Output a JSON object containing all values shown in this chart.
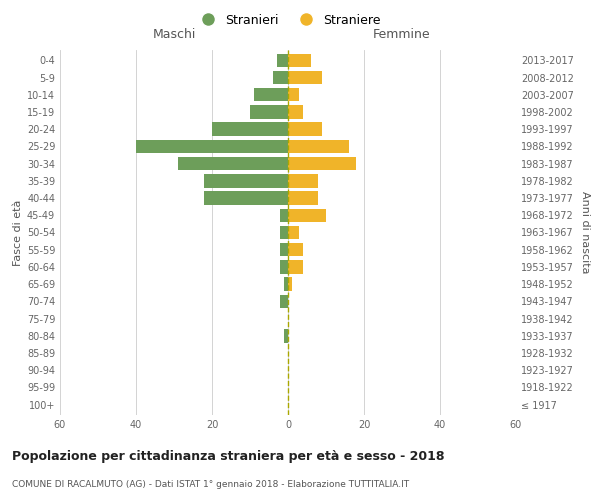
{
  "age_groups": [
    "100+",
    "95-99",
    "90-94",
    "85-89",
    "80-84",
    "75-79",
    "70-74",
    "65-69",
    "60-64",
    "55-59",
    "50-54",
    "45-49",
    "40-44",
    "35-39",
    "30-34",
    "25-29",
    "20-24",
    "15-19",
    "10-14",
    "5-9",
    "0-4"
  ],
  "birth_years": [
    "≤ 1917",
    "1918-1922",
    "1923-1927",
    "1928-1932",
    "1933-1937",
    "1938-1942",
    "1943-1947",
    "1948-1952",
    "1953-1957",
    "1958-1962",
    "1963-1967",
    "1968-1972",
    "1973-1977",
    "1978-1982",
    "1983-1987",
    "1988-1992",
    "1993-1997",
    "1998-2002",
    "2003-2007",
    "2008-2012",
    "2013-2017"
  ],
  "males": [
    0,
    0,
    0,
    0,
    1,
    0,
    2,
    1,
    2,
    2,
    2,
    2,
    22,
    22,
    29,
    40,
    20,
    10,
    9,
    4,
    3
  ],
  "females": [
    0,
    0,
    0,
    0,
    0,
    0,
    0,
    1,
    4,
    4,
    3,
    10,
    8,
    8,
    18,
    16,
    9,
    4,
    3,
    9,
    6
  ],
  "male_color": "#6d9e5a",
  "female_color": "#f0b429",
  "title": "Popolazione per cittadinanza straniera per età e sesso - 2018",
  "subtitle": "COMUNE DI RACALMUTO (AG) - Dati ISTAT 1° gennaio 2018 - Elaborazione TUTTITALIA.IT",
  "xlabel_left": "Maschi",
  "xlabel_right": "Femmine",
  "ylabel_left": "Fasce di età",
  "ylabel_right": "Anni di nascita",
  "legend_male": "Stranieri",
  "legend_female": "Straniere",
  "xlim": 60,
  "bg_color": "#ffffff",
  "grid_color": "#cccccc",
  "dashed_line_color": "#aaa800",
  "axis_label_color": "#555555",
  "tick_label_color": "#666666"
}
